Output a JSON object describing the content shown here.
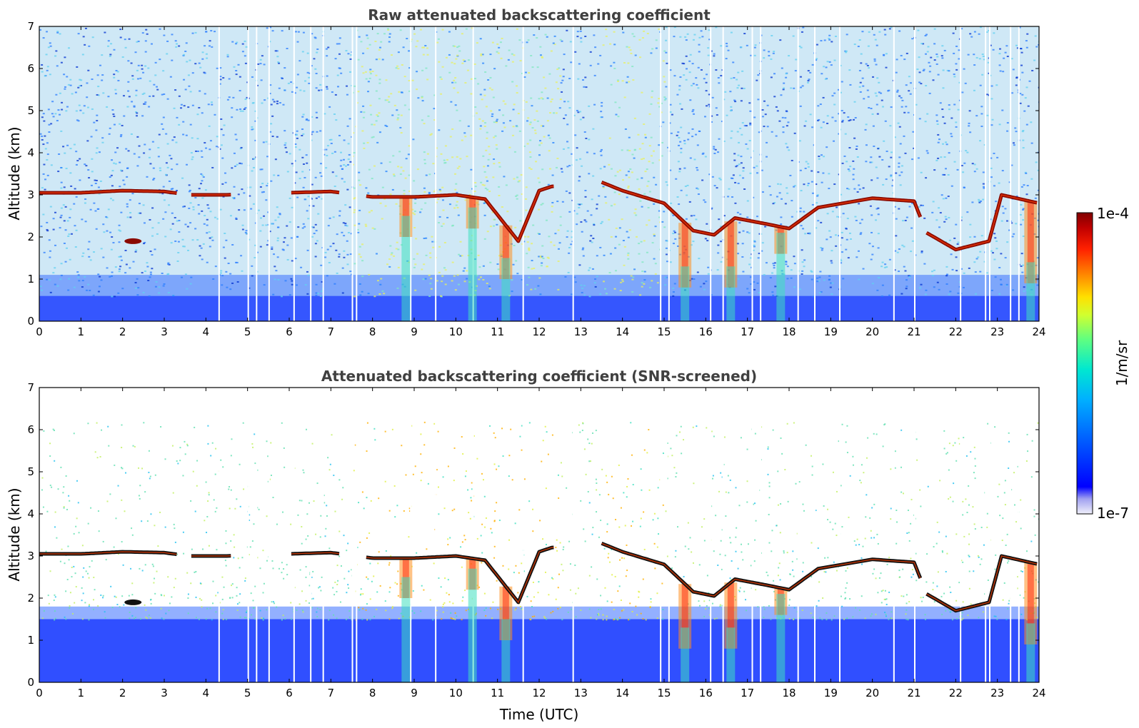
{
  "chart_data": [
    {
      "type": "heatmap",
      "title": "Raw attenuated backscattering coefficient",
      "ylabel": "Altitude (km)",
      "xlabel": "",
      "xlim": [
        0,
        24
      ],
      "ylim": [
        0,
        7
      ],
      "x_ticks": [
        "0",
        "1",
        "2",
        "3",
        "4",
        "5",
        "6",
        "7",
        "8",
        "9",
        "10",
        "11",
        "12",
        "13",
        "14",
        "15",
        "16",
        "17",
        "18",
        "19",
        "20",
        "21",
        "22",
        "23",
        "24"
      ],
      "y_ticks": [
        "0",
        "1",
        "2",
        "3",
        "4",
        "5",
        "6",
        "7"
      ],
      "layers": {
        "boundary_layer_top_km": 0.6,
        "background_noise": "dense",
        "cloud_layer": [
          [
            0,
            3.05
          ],
          [
            1,
            3.05
          ],
          [
            2,
            3.1
          ],
          [
            3,
            3.08
          ],
          [
            3.6,
            3.0
          ],
          [
            4.5,
            3.0
          ],
          [
            6,
            3.05
          ],
          [
            7,
            3.08
          ],
          [
            8,
            2.95
          ],
          [
            9,
            2.95
          ],
          [
            10,
            3.0
          ],
          [
            10.7,
            2.9
          ],
          [
            11.5,
            1.9
          ],
          [
            12,
            3.1
          ],
          [
            12.3,
            3.2
          ],
          [
            13.5,
            3.3
          ],
          [
            14,
            3.1
          ],
          [
            15,
            2.8
          ],
          [
            15.7,
            2.15
          ],
          [
            16.2,
            2.05
          ],
          [
            16.7,
            2.45
          ],
          [
            17.5,
            2.3
          ],
          [
            18,
            2.2
          ],
          [
            18.7,
            2.7
          ],
          [
            20,
            2.92
          ],
          [
            21,
            2.85
          ],
          [
            21.3,
            2.1
          ],
          [
            22,
            1.7
          ],
          [
            22.8,
            1.9
          ],
          [
            23.1,
            3.0
          ],
          [
            24,
            2.8
          ]
        ],
        "virga": [
          [
            8.8,
            2.0
          ],
          [
            10.4,
            2.2
          ],
          [
            11.2,
            1.0
          ],
          [
            15.5,
            0.8
          ],
          [
            16.6,
            0.8
          ],
          [
            17.8,
            1.6
          ],
          [
            23.8,
            0.9
          ]
        ],
        "gaps_utc": [
          4.3,
          5.0,
          5.2,
          5.5,
          6.1,
          6.5,
          6.8,
          7.5,
          7.6,
          8.9,
          9.5,
          10.4,
          11.6,
          12.8,
          14.9,
          15.1,
          16.1,
          16.4,
          17.1,
          17.3,
          18.2,
          18.6,
          19.2,
          20.5,
          21.0,
          22.1,
          22.7,
          22.8,
          23.3,
          23.5
        ]
      }
    },
    {
      "type": "heatmap",
      "title": "Attenuated backscattering coefficient (SNR-screened)",
      "ylabel": "Altitude (km)",
      "xlabel": "Time (UTC)",
      "xlim": [
        0,
        24
      ],
      "ylim": [
        0,
        7
      ],
      "x_ticks": [
        "0",
        "1",
        "2",
        "3",
        "4",
        "5",
        "6",
        "7",
        "8",
        "9",
        "10",
        "11",
        "12",
        "13",
        "14",
        "15",
        "16",
        "17",
        "18",
        "19",
        "20",
        "21",
        "22",
        "23",
        "24"
      ],
      "y_ticks": [
        "0",
        "1",
        "2",
        "3",
        "4",
        "5",
        "6",
        "7"
      ],
      "layers": {
        "boundary_layer_top_km": 1.5,
        "background_noise": "sparse",
        "cloud_layer": [
          [
            0,
            3.05
          ],
          [
            1,
            3.05
          ],
          [
            2,
            3.1
          ],
          [
            3,
            3.08
          ],
          [
            3.6,
            3.0
          ],
          [
            4.5,
            3.0
          ],
          [
            6,
            3.05
          ],
          [
            7,
            3.08
          ],
          [
            8,
            2.95
          ],
          [
            9,
            2.95
          ],
          [
            10,
            3.0
          ],
          [
            10.7,
            2.9
          ],
          [
            11.5,
            1.9
          ],
          [
            12,
            3.1
          ],
          [
            12.3,
            3.2
          ],
          [
            13.5,
            3.3
          ],
          [
            14,
            3.1
          ],
          [
            15,
            2.8
          ],
          [
            15.7,
            2.15
          ],
          [
            16.2,
            2.05
          ],
          [
            16.7,
            2.45
          ],
          [
            17.5,
            2.3
          ],
          [
            18,
            2.2
          ],
          [
            18.7,
            2.7
          ],
          [
            20,
            2.92
          ],
          [
            21,
            2.85
          ],
          [
            21.3,
            2.1
          ],
          [
            22,
            1.7
          ],
          [
            22.8,
            1.9
          ],
          [
            23.1,
            3.0
          ],
          [
            24,
            2.8
          ]
        ],
        "virga": [
          [
            8.8,
            2.0
          ],
          [
            10.4,
            2.2
          ],
          [
            11.2,
            1.0
          ],
          [
            15.5,
            0.8
          ],
          [
            16.6,
            0.8
          ],
          [
            17.8,
            1.6
          ],
          [
            23.8,
            0.9
          ]
        ],
        "gaps_utc": [
          4.3,
          5.0,
          5.2,
          5.5,
          6.1,
          6.5,
          6.8,
          7.5,
          7.6,
          8.9,
          9.5,
          10.4,
          11.6,
          12.8,
          14.9,
          15.1,
          16.1,
          16.4,
          17.1,
          17.3,
          18.2,
          18.6,
          19.2,
          20.5,
          21.0,
          22.1,
          22.7,
          22.8,
          23.3,
          23.5
        ]
      }
    }
  ],
  "colorbar": {
    "label": "1/m/sr",
    "max_label": "1e-4",
    "min_label": "1e-7",
    "colormap": "jet",
    "colors": [
      "#e8e8f8",
      "#b0b0f0",
      "#0000ff",
      "#0050ff",
      "#00a0ff",
      "#00e0e0",
      "#40ff90",
      "#c0ff30",
      "#ffe000",
      "#ff8000",
      "#ff2000",
      "#c00000",
      "#800000"
    ]
  }
}
